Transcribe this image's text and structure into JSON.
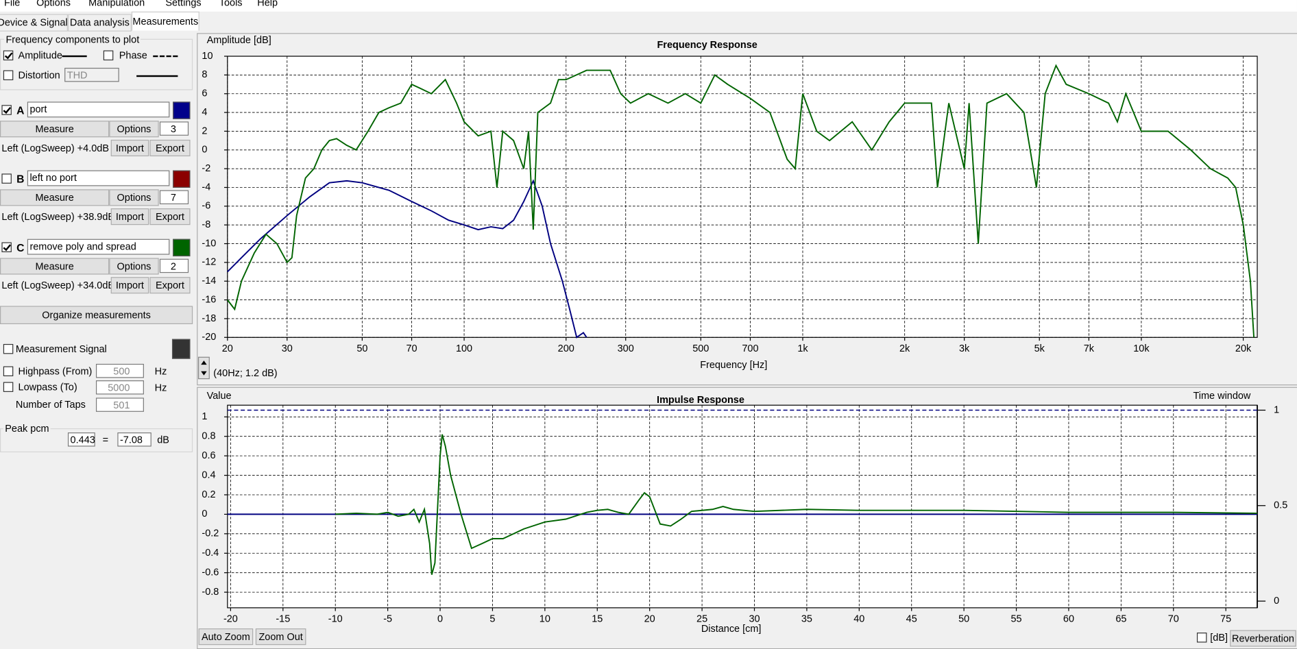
{
  "menu": [
    "File",
    "Options",
    "Manipulation",
    "Settings",
    "Tools",
    "Help"
  ],
  "tabs": [
    "Device & Signal",
    "Data analysis",
    "Measurements"
  ],
  "components": {
    "title": "Frequency components to plot",
    "amplitude": "Amplitude",
    "amplitude_checked": true,
    "phase": "Phase",
    "distortion": "Distortion",
    "distortion_type": "THD"
  },
  "measurements": [
    {
      "letter": "A",
      "name": "port",
      "color": "#00008b",
      "checked": true,
      "measure": "Measure",
      "options": "Options",
      "count": 3,
      "source": "Left (LogSweep) +4.0dB",
      "import": "Import",
      "export": "Export"
    },
    {
      "letter": "B",
      "name": "left no port",
      "color": "#8b0000",
      "checked": false,
      "measure": "Measure",
      "options": "Options",
      "count": 7,
      "source": "Left (LogSweep) +38.9dB",
      "import": "Import",
      "export": "Export"
    },
    {
      "letter": "C",
      "name": "remove poly and spread",
      "color": "#006400",
      "checked": true,
      "measure": "Measure",
      "options": "Options",
      "count": 2,
      "source": "Left (LogSweep) +34.0dB",
      "import": "Import",
      "export": "Export"
    }
  ],
  "organize": "Organize measurements",
  "signal": {
    "title": "Measurement Signal",
    "highpass": "Highpass (From)",
    "highpass_value": 500,
    "lowpass": "Lowpass (To)",
    "lowpass_value": 5000,
    "taps": "Number of Taps",
    "taps_value": 501,
    "hz": "Hz"
  },
  "peak": {
    "title": "Peak pcm",
    "value": 0.443,
    "equals": "=",
    "db": -7.08,
    "unit": "dB"
  },
  "buttons": {
    "auto_zoom": "Auto Zoom",
    "zoom_out": "Zoom Out",
    "db": "[dB]",
    "reverberation": "Reverberation"
  },
  "chart_data": [
    {
      "type": "line",
      "title": "Frequency Response",
      "y_label": "Amplitude [dB]",
      "x_label": "Frequency [Hz]",
      "annotation": "(40Hz; 1.2 dB)",
      "xscale": "log",
      "xlim": [
        20,
        22000
      ],
      "ylim": [
        -20,
        10
      ],
      "grid": true,
      "xticks": [
        20,
        30,
        50,
        70,
        100,
        200,
        300,
        500,
        700,
        {
          "value": 1000,
          "label": "1k"
        },
        {
          "value": 2000,
          "label": "2k"
        },
        {
          "value": 3000,
          "label": "3k"
        },
        {
          "value": 5000,
          "label": "5k"
        },
        {
          "value": 7000,
          "label": "7k"
        },
        {
          "value": 10000,
          "label": "10k"
        },
        {
          "value": 20000,
          "label": "20k"
        }
      ],
      "yticks": [
        -20,
        -18,
        -16,
        -14,
        -12,
        -10,
        -8,
        -6,
        -4,
        -2,
        0,
        2,
        4,
        6,
        8,
        10
      ],
      "series": [
        {
          "color": "#000080",
          "x": [
            20,
            22,
            25,
            30,
            35,
            40,
            45,
            50,
            60,
            70,
            80,
            90,
            100,
            110,
            120,
            130,
            140,
            150,
            160,
            170,
            180,
            195,
            205,
            215,
            225,
            230
          ],
          "values": [
            -13,
            -11.5,
            -9.5,
            -7,
            -5,
            -3.5,
            -3.3,
            -3.5,
            -4.3,
            -5.5,
            -6.5,
            -7.5,
            -8,
            -8.5,
            -8.2,
            -8.4,
            -7.5,
            -5.5,
            -3.3,
            -6,
            -10,
            -14,
            -17,
            -20,
            -19.5,
            -20
          ]
        },
        {
          "color": "#006400",
          "x": [
            20,
            21,
            22,
            24,
            26,
            28,
            30,
            31,
            32,
            34,
            36,
            38,
            40,
            42,
            45,
            48,
            52,
            56,
            60,
            65,
            70,
            75,
            80,
            88,
            95,
            100,
            110,
            120,
            125,
            130,
            140,
            150,
            155,
            160,
            165,
            180,
            190,
            200,
            230,
            270,
            290,
            310,
            350,
            400,
            450,
            500,
            550,
            600,
            700,
            800,
            900,
            950,
            1000,
            1100,
            1200,
            1400,
            1600,
            1800,
            2000,
            2200,
            2400,
            2500,
            2700,
            3000,
            3100,
            3300,
            3500,
            4000,
            4500,
            4900,
            5200,
            5600,
            6000,
            7000,
            8000,
            8500,
            9000,
            10000,
            12000,
            14000,
            16000,
            18000,
            19000,
            20000,
            21000,
            21500
          ],
          "values": [
            -16,
            -17,
            -14,
            -11,
            -9,
            -10,
            -12,
            -11.5,
            -7,
            -3,
            -2,
            0,
            1,
            1.2,
            0.5,
            0,
            2,
            4,
            4.5,
            5,
            7,
            6.5,
            6,
            7.5,
            5,
            3,
            1.5,
            2,
            -4,
            2,
            1,
            -2,
            2,
            -8.5,
            4,
            5,
            7.5,
            7.5,
            8.5,
            8.5,
            6,
            5,
            6,
            5,
            6,
            5,
            8,
            7,
            5.5,
            4,
            -1,
            -2,
            6,
            2,
            1,
            3,
            0,
            3,
            5,
            5,
            5,
            -4,
            5,
            -2,
            5,
            -10,
            5,
            6,
            4,
            -4,
            6,
            9,
            7,
            6,
            5,
            3,
            6,
            2,
            2,
            0,
            -2,
            -3,
            -4,
            -8,
            -14,
            -20
          ]
        }
      ]
    },
    {
      "type": "line",
      "title": "Impulse Response",
      "y_label": "Value",
      "y2_label": "Time window",
      "x_label": "Distance [cm]",
      "xlim": [
        -20.3,
        78
      ],
      "ylim": [
        -0.96,
        1.12
      ],
      "y2lim": [
        -0.035,
        1.026
      ],
      "grid": true,
      "xticks": [
        -20,
        -15,
        -10,
        -5,
        0,
        5,
        10,
        15,
        20,
        25,
        30,
        35,
        40,
        45,
        50,
        55,
        60,
        65,
        70,
        75
      ],
      "yticks": [
        -0.8,
        -0.6,
        -0.4,
        -0.2,
        0,
        0.2,
        0.4,
        0.6,
        0.8,
        1
      ],
      "y2ticks": [
        0,
        0.5,
        1
      ],
      "series": [
        {
          "color": "#000080",
          "x": [
            -20.3,
            78
          ],
          "values": [
            0,
            0
          ]
        },
        {
          "color": "#000080",
          "axis": "y2",
          "dash": true,
          "x": [
            -20.3,
            78
          ],
          "values": [
            1,
            1
          ]
        },
        {
          "color": "#006400",
          "x": [
            -10,
            -8,
            -6,
            -5,
            -4,
            -3,
            -2.5,
            -2,
            -1.5,
            -1,
            -0.8,
            -0.5,
            0,
            0.2,
            0.5,
            1,
            2,
            3,
            4,
            5,
            6,
            7,
            8,
            10,
            12,
            14,
            15,
            16,
            17,
            18,
            19,
            19.5,
            20,
            21,
            22,
            23,
            24,
            26,
            27,
            28,
            30,
            35,
            40,
            50,
            60,
            70,
            78
          ],
          "values": [
            0,
            0.01,
            0,
            0.02,
            -0.02,
            0,
            0.05,
            -0.08,
            0.05,
            -0.3,
            -0.62,
            -0.5,
            0.6,
            0.82,
            0.7,
            0.4,
            0,
            -0.35,
            -0.3,
            -0.25,
            -0.25,
            -0.2,
            -0.15,
            -0.08,
            -0.05,
            0.02,
            0.04,
            0.05,
            0.02,
            0,
            0.15,
            0.22,
            0.18,
            -0.1,
            -0.12,
            -0.05,
            0.03,
            0.05,
            0.08,
            0.05,
            0.03,
            0.05,
            0.04,
            0.04,
            0.02,
            0.02,
            0.01
          ]
        }
      ]
    }
  ]
}
